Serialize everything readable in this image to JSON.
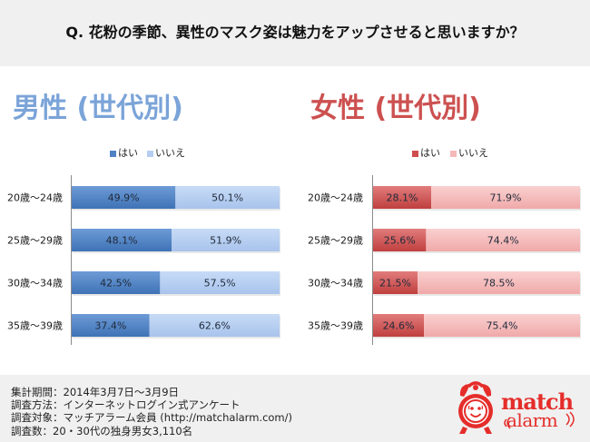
{
  "header": {
    "question": "Q. 花粉の季節、異性のマスク姿は魅力をアップさせると思いますか？"
  },
  "colors": {
    "male_title": "#7ba4d8",
    "female_title": "#cc5150",
    "male_yes": "#4f82c4",
    "male_no": "#b4cdf1",
    "female_yes": "#cf4e4d",
    "female_no": "#f5b9b9",
    "logo_red": "#e52d2a",
    "band_bg": "#f0f0f0"
  },
  "chart_data": [
    {
      "type": "bar",
      "orientation": "horizontal",
      "stacked": true,
      "title": "男性 (世代別)",
      "categories": [
        "20歳～24歳",
        "25歳～29歳",
        "30歳～34歳",
        "35歳～39歳"
      ],
      "series": [
        {
          "name": "はい",
          "values": [
            49.9,
            48.1,
            42.5,
            37.4
          ],
          "labels": [
            "49.9%",
            "48.1%",
            "42.5%",
            "37.4%"
          ]
        },
        {
          "name": "いいえ",
          "values": [
            50.1,
            51.9,
            57.5,
            62.6
          ],
          "labels": [
            "50.1%",
            "51.9%",
            "57.5%",
            "62.6%"
          ]
        }
      ],
      "xlim": [
        0,
        100
      ],
      "xlabel": "",
      "ylabel": "",
      "grid": false,
      "legend": "top-center"
    },
    {
      "type": "bar",
      "orientation": "horizontal",
      "stacked": true,
      "title": "女性 (世代別)",
      "categories": [
        "20歳～24歳",
        "25歳～29歳",
        "30歳～34歳",
        "35歳～39歳"
      ],
      "series": [
        {
          "name": "はい",
          "values": [
            28.1,
            25.6,
            21.5,
            24.6
          ],
          "labels": [
            "28.1%",
            "25.6%",
            "21.5%",
            "24.6%"
          ]
        },
        {
          "name": "いいえ",
          "values": [
            71.9,
            74.4,
            78.5,
            75.4
          ],
          "labels": [
            "71.9%",
            "74.4%",
            "78.5%",
            "75.4%"
          ]
        }
      ],
      "xlim": [
        0,
        100
      ],
      "xlabel": "",
      "ylabel": "",
      "grid": false,
      "legend": "top-center"
    }
  ],
  "footer": {
    "lines": [
      "集計期間：2014年3月7日～3月9日",
      "調査方法：インターネットログイン式アンケート",
      "調査対象：マッチアラーム会員 (http://matchalarm.com/)",
      "調査数：20・30代の独身男女3,110名"
    ]
  },
  "logo": {
    "icon": "alarm-clock-face-icon",
    "word1": "match",
    "word2": "alarm"
  }
}
